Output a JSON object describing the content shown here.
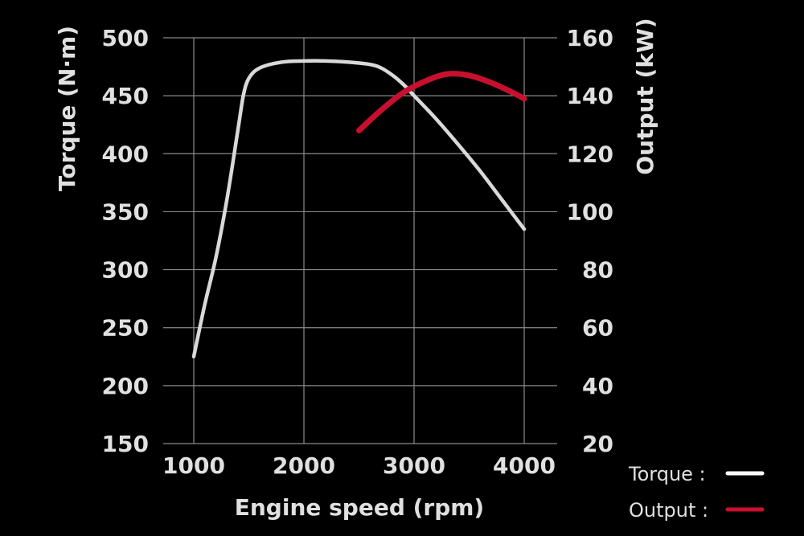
{
  "chart_data": {
    "type": "line",
    "xlabel": "Engine speed (rpm)",
    "ylabel_left": "Torque (N·m)",
    "ylabel_right": "Output (kW)",
    "xlim": [
      1000,
      4000
    ],
    "ylim_left": [
      150,
      500
    ],
    "ylim_right": [
      20,
      160
    ],
    "x_ticks": [
      "1000",
      "2000",
      "3000",
      "4000"
    ],
    "y_ticks_left": [
      "150",
      "200",
      "250",
      "300",
      "350",
      "400",
      "450",
      "500"
    ],
    "y_ticks_right": [
      "20",
      "40",
      "60",
      "80",
      "100",
      "120",
      "140",
      "160"
    ],
    "grid": true,
    "legend_position": "bottom-right",
    "series": [
      {
        "name": "Torque",
        "axis": "left",
        "color": "#d9d9d9",
        "points": [
          [
            1000,
            225
          ],
          [
            1100,
            270
          ],
          [
            1200,
            310
          ],
          [
            1300,
            360
          ],
          [
            1400,
            420
          ],
          [
            1450,
            450
          ],
          [
            1500,
            465
          ],
          [
            1600,
            474
          ],
          [
            1800,
            479
          ],
          [
            2000,
            480
          ],
          [
            2200,
            480
          ],
          [
            2400,
            479
          ],
          [
            2600,
            477
          ],
          [
            2700,
            474
          ],
          [
            2800,
            468
          ],
          [
            2900,
            460
          ],
          [
            3000,
            450
          ],
          [
            3200,
            430
          ],
          [
            3400,
            408
          ],
          [
            3600,
            385
          ],
          [
            3800,
            360
          ],
          [
            4000,
            335
          ]
        ]
      },
      {
        "name": "Output",
        "axis": "right",
        "color": "#c8102e",
        "points": [
          [
            2500,
            128
          ],
          [
            2700,
            135
          ],
          [
            2900,
            141
          ],
          [
            3100,
            145
          ],
          [
            3300,
            147.5
          ],
          [
            3500,
            147
          ],
          [
            3700,
            144.5
          ],
          [
            3900,
            141
          ],
          [
            4000,
            139
          ]
        ]
      }
    ],
    "legend": [
      {
        "label": "Torque :",
        "color": "#ffffff"
      },
      {
        "label": "Output :",
        "color": "#c8102e"
      }
    ]
  }
}
